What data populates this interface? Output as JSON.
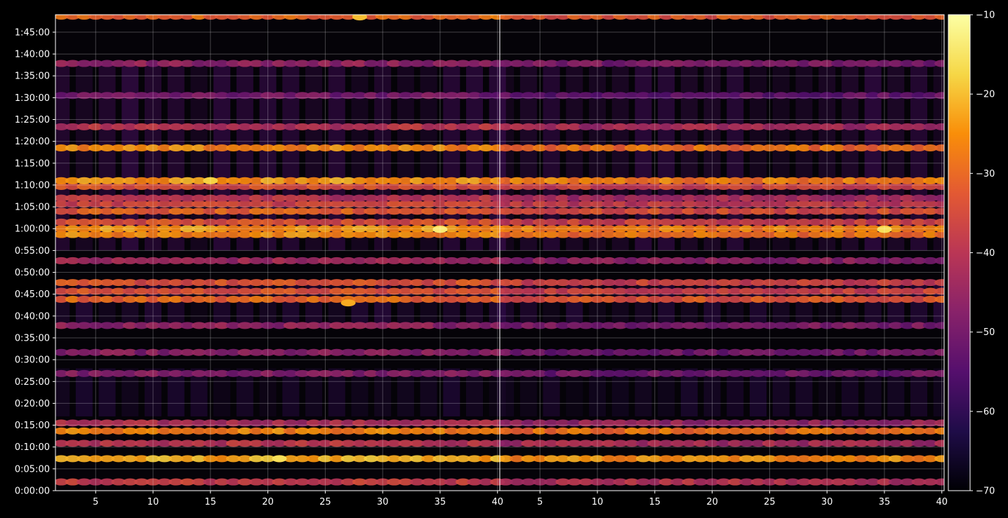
{
  "chart_data": {
    "type": "heatmap",
    "title": "",
    "xlabel": "",
    "ylabel": "",
    "panels": [
      {
        "name": "",
        "x_range": [
          1.5,
          40.2
        ],
        "x_ticks": [
          "5",
          "10",
          "15",
          "20",
          "25",
          "30",
          "35",
          "40"
        ]
      },
      {
        "name": "",
        "x_range": [
          1.5,
          40.2
        ],
        "x_ticks": [
          "5",
          "10",
          "15",
          "20",
          "25",
          "30",
          "35",
          "40"
        ]
      }
    ],
    "y_range_seconds": [
      0,
      6540
    ],
    "y_ticks": [
      "0:00:00",
      "0:05:00",
      "0:10:00",
      "0:15:00",
      "0:20:00",
      "0:25:00",
      "0:30:00",
      "0:35:00",
      "0:40:00",
      "0:45:00",
      "0:50:00",
      "0:55:00",
      "1:00:00",
      "1:05:00",
      "1:10:00",
      "1:15:00",
      "1:20:00",
      "1:25:00",
      "1:30:00",
      "1:35:00",
      "1:40:00",
      "1:45:00"
    ],
    "colorbar": {
      "colormap": "inferno",
      "range": [
        -70,
        -10
      ],
      "ticks": [
        "−70",
        "−60",
        "−50",
        "−40",
        "−30",
        "−20",
        "−10"
      ]
    },
    "grid": true,
    "band_levels_approx": [
      {
        "time": "0:02:00",
        "level": -38
      },
      {
        "time": "0:07:20",
        "level": -22
      },
      {
        "time": "0:10:50",
        "level": -40
      },
      {
        "time": "0:13:40",
        "level": -26
      },
      {
        "time": "0:15:30",
        "level": -42
      },
      {
        "time": "0:26:50",
        "level": -48
      },
      {
        "time": "0:31:40",
        "level": -48
      },
      {
        "time": "0:37:50",
        "level": -46
      },
      {
        "time": "0:43:50",
        "level": -30
      },
      {
        "time": "0:45:40",
        "level": -34
      },
      {
        "time": "0:47:40",
        "level": -34
      },
      {
        "time": "0:52:40",
        "level": -44
      },
      {
        "time": "0:58:40",
        "level": -26
      },
      {
        "time": "1:00:00",
        "level": -24
      },
      {
        "time": "1:01:30",
        "level": -34
      },
      {
        "time": "1:04:00",
        "level": -32
      },
      {
        "time": "1:05:40",
        "level": -36
      },
      {
        "time": "1:07:00",
        "level": -40
      },
      {
        "time": "1:09:40",
        "level": -34
      },
      {
        "time": "1:11:00",
        "level": -24
      },
      {
        "time": "1:18:30",
        "level": -26
      },
      {
        "time": "1:23:20",
        "level": -40
      },
      {
        "time": "1:30:30",
        "level": -50
      },
      {
        "time": "1:37:50",
        "level": -46
      },
      {
        "time": "1:48:40",
        "level": -30
      }
    ],
    "hot_spots": [
      {
        "panel": 1,
        "x": 27,
        "time": "0:43:00",
        "level": -22
      },
      {
        "panel": 1,
        "x": 35,
        "time": "0:59:50",
        "level": -14
      },
      {
        "panel": 2,
        "x": 35,
        "time": "0:59:50",
        "level": -16
      },
      {
        "panel": 1,
        "x": 28,
        "time": "1:48:30",
        "level": -20
      },
      {
        "panel": 1,
        "x": 15,
        "time": "1:11:00",
        "level": -18
      },
      {
        "panel": 1,
        "x": 21,
        "time": "0:07:20",
        "level": -16
      }
    ]
  }
}
